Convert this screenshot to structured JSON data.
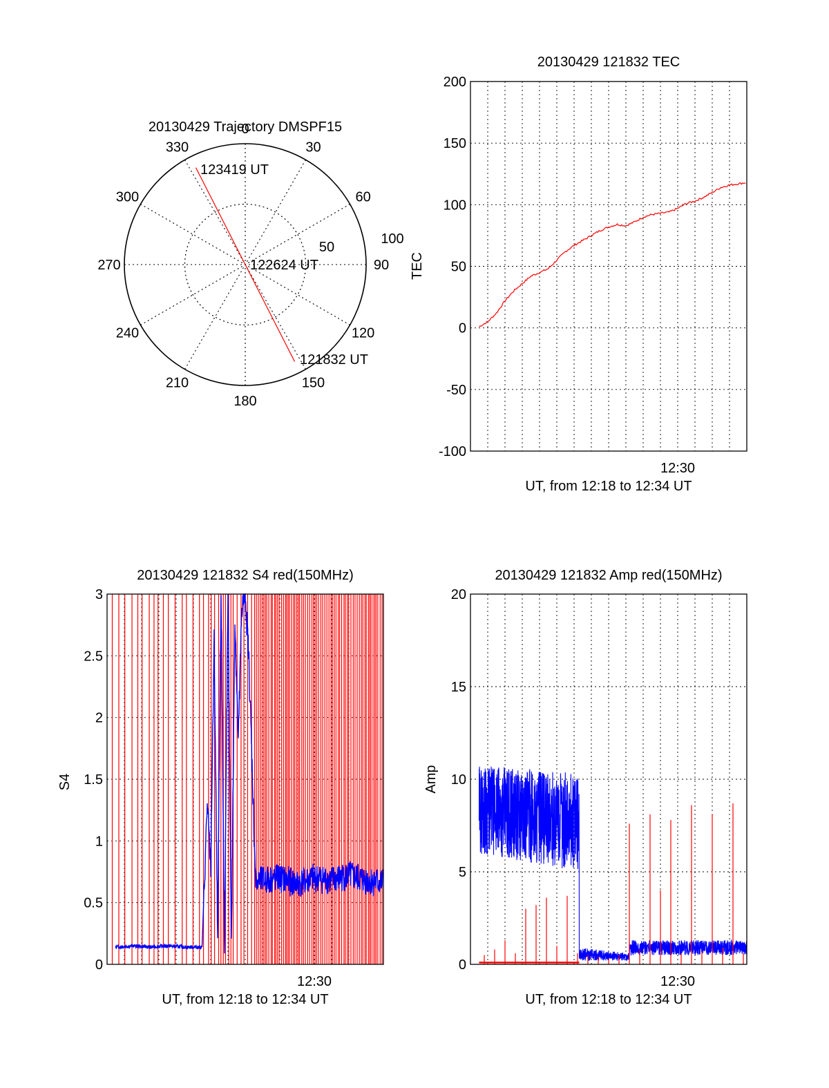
{
  "chart_data": [
    {
      "type": "polar",
      "title": "20130429 Trajectory DMSPF15",
      "angle_labels": [
        "0",
        "30",
        "60",
        "90",
        "120",
        "150",
        "180",
        "210",
        "240",
        "270",
        "300",
        "330"
      ],
      "radial_labels": [
        "50",
        "100"
      ],
      "rlim": [
        0,
        100
      ],
      "grid": true,
      "trajectory_color": "#ff0000",
      "trajectory": {
        "start": {
          "label": "121832 UT",
          "azimuth": 153,
          "elevation_offset": 90
        },
        "middle": {
          "label": "122624 UT",
          "azimuth": 0,
          "elevation_offset": 0
        },
        "end": {
          "label": "123419 UT",
          "azimuth": 333,
          "elevation_offset": 90
        }
      }
    },
    {
      "type": "line",
      "title": "20130429 121832 TEC",
      "xlabel": "UT, from 12:18 to 12:34 UT",
      "ylabel": "TEC",
      "xlim": [
        0,
        16
      ],
      "ylim": [
        -100,
        200
      ],
      "y_ticks": [
        "-100",
        "-50",
        "0",
        "50",
        "100",
        "150",
        "200"
      ],
      "x_tick_labels": [
        {
          "label": "12:30",
          "x": 12
        }
      ],
      "grid": true,
      "series": [
        {
          "color": "#ff0000",
          "x": [
            0.5,
            1,
            1.5,
            2,
            2.5,
            3,
            3.5,
            4,
            4.5,
            5,
            5.5,
            6,
            6.5,
            7,
            7.5,
            8,
            8.5,
            9,
            9.5,
            10,
            10.5,
            11,
            11.5,
            12,
            12.5,
            13,
            13.5,
            14,
            14.5,
            15,
            15.5,
            16
          ],
          "y": [
            1,
            5,
            12,
            22,
            30,
            36,
            42,
            45,
            48,
            55,
            62,
            67,
            71,
            75,
            79,
            82,
            84,
            83,
            86,
            90,
            92,
            93,
            94,
            97,
            101,
            103,
            106,
            110,
            114,
            116,
            117,
            118
          ]
        }
      ]
    },
    {
      "type": "line",
      "title": "20130429 121832 S4 red(150MHz)",
      "xlabel": "UT, from 12:18 to 12:34 UT",
      "ylabel": "S4",
      "xlim": [
        0,
        16
      ],
      "ylim": [
        0,
        3
      ],
      "y_ticks": [
        "0",
        "0.5",
        "1",
        "1.5",
        "2",
        "2.5",
        "3"
      ],
      "x_tick_labels": [
        {
          "label": "12:30",
          "x": 12
        }
      ],
      "grid": true,
      "series": [
        {
          "color": "#ff0000",
          "style": "spikes-to-top"
        },
        {
          "color": "#0000ff",
          "x": [
            0.5,
            1.5,
            2.5,
            3.5,
            4.5,
            5.5,
            5.8,
            6.0,
            6.2,
            6.4,
            6.6,
            6.8,
            7.0,
            7.2,
            7.4,
            7.6,
            7.8,
            8.0,
            8.2,
            8.4,
            8.6,
            9.0,
            10.0,
            11.0,
            12.0,
            13.0,
            14.0,
            15.0,
            16.0
          ],
          "y": [
            0.14,
            0.15,
            0.14,
            0.15,
            0.14,
            0.14,
            1.3,
            0.8,
            2.6,
            0.2,
            3.0,
            0.1,
            3.0,
            0.2,
            2.8,
            1.8,
            2.9,
            3.0,
            2.5,
            1.6,
            0.65,
            0.68,
            0.7,
            0.65,
            0.7,
            0.68,
            0.72,
            0.68,
            0.66
          ]
        }
      ]
    },
    {
      "type": "line",
      "title": "20130429 121832 Amp red(150MHz)",
      "xlabel": "UT, from 12:18 to 12:34 UT",
      "ylabel": "Amp",
      "xlim": [
        0,
        16
      ],
      "ylim": [
        0,
        20
      ],
      "y_ticks": [
        "0",
        "5",
        "10",
        "15",
        "20"
      ],
      "x_tick_labels": [
        {
          "label": "12:30",
          "x": 12
        }
      ],
      "grid": true,
      "series": [
        {
          "color": "#0000ff",
          "style": "band",
          "x": [
            0.5,
            6.3,
            6.3,
            9.2,
            9.2,
            16
          ],
          "low": [
            6.0,
            5.0,
            0.2,
            0.2,
            0.5,
            0.5
          ],
          "high": [
            10.8,
            10.3,
            0.9,
            0.6,
            1.3,
            1.3
          ]
        },
        {
          "color": "#ff0000",
          "style": "spikes",
          "baseline": 0.1,
          "x": [
            0.8,
            1.4,
            2.0,
            2.6,
            3.2,
            3.8,
            4.4,
            5.0,
            5.6,
            6.2,
            6.8,
            7.4,
            8.0,
            8.6,
            9.2,
            9.8,
            10.4,
            11.0,
            11.6,
            12.2,
            12.8,
            13.4,
            14.0,
            14.6,
            15.2,
            15.8
          ],
          "y": [
            0.5,
            0.8,
            1.3,
            0.6,
            3.0,
            3.2,
            3.6,
            1.0,
            3.7,
            0.6,
            0.5,
            0.4,
            0.3,
            0.5,
            7.6,
            0.8,
            8.1,
            4.0,
            7.8,
            0.6,
            8.6,
            0.7,
            8.1,
            0.9,
            8.7,
            0.6
          ]
        }
      ]
    }
  ]
}
